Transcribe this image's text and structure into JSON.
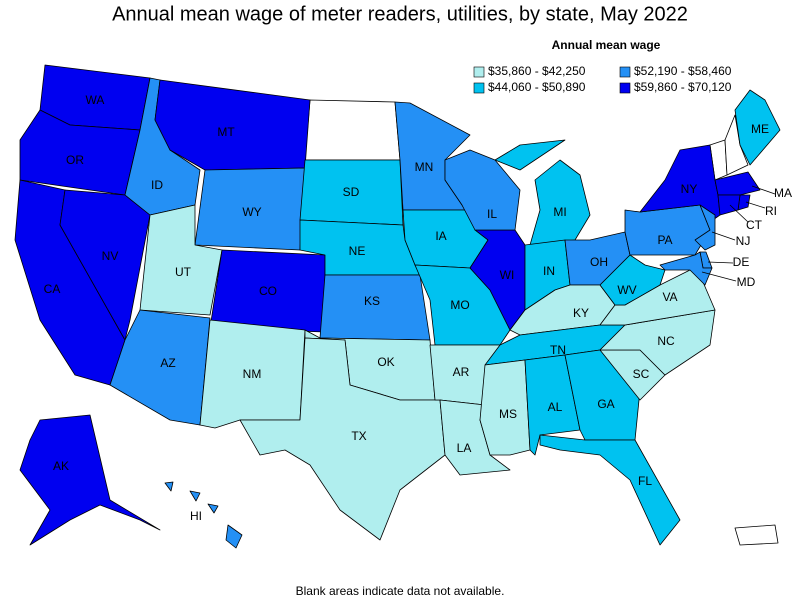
{
  "title": "Annual mean wage of meter readers, utilities, by state, May 2022",
  "legend": {
    "title": "Annual mean wage",
    "bins": [
      {
        "label": "$35,860 - $42,250",
        "color": "#b0eeee"
      },
      {
        "label": "$44,060 - $50,890",
        "color": "#00c2f0"
      },
      {
        "label": "$52,190 - $58,460",
        "color": "#2490f5"
      },
      {
        "label": "$59,860 - $70,120",
        "color": "#0000f0"
      }
    ]
  },
  "states": [
    {
      "label": "WA",
      "bin": 3
    },
    {
      "label": "OR",
      "bin": 3
    },
    {
      "label": "CA",
      "bin": 3
    },
    {
      "label": "NV",
      "bin": 3
    },
    {
      "label": "ID",
      "bin": 2
    },
    {
      "label": "MT",
      "bin": 3
    },
    {
      "label": "WY",
      "bin": 2
    },
    {
      "label": "UT",
      "bin": 0
    },
    {
      "label": "CO",
      "bin": 3
    },
    {
      "label": "AZ",
      "bin": 2
    },
    {
      "label": "NM",
      "bin": 0
    },
    {
      "label": "SD",
      "bin": 1
    },
    {
      "label": "NE",
      "bin": 1
    },
    {
      "label": "KS",
      "bin": 2
    },
    {
      "label": "OK",
      "bin": 0
    },
    {
      "label": "TX",
      "bin": 0
    },
    {
      "label": "MN",
      "bin": 2
    },
    {
      "label": "IA",
      "bin": 1
    },
    {
      "label": "MO",
      "bin": 1
    },
    {
      "label": "AR",
      "bin": 0
    },
    {
      "label": "LA",
      "bin": 0
    },
    {
      "label": "WI",
      "bin": 3
    },
    {
      "label": "IL",
      "bin": 2
    },
    {
      "label": "MI",
      "bin": 1
    },
    {
      "label": "IN",
      "bin": 1
    },
    {
      "label": "OH",
      "bin": 2
    },
    {
      "label": "KY",
      "bin": 0
    },
    {
      "label": "TN",
      "bin": 1
    },
    {
      "label": "MS",
      "bin": 0
    },
    {
      "label": "AL",
      "bin": 1
    },
    {
      "label": "GA",
      "bin": 1
    },
    {
      "label": "FL",
      "bin": 1
    },
    {
      "label": "SC",
      "bin": 0
    },
    {
      "label": "NC",
      "bin": 0
    },
    {
      "label": "VA",
      "bin": 0
    },
    {
      "label": "WV",
      "bin": 1
    },
    {
      "label": "PA",
      "bin": 2
    },
    {
      "label": "NY",
      "bin": 3
    },
    {
      "label": "ME",
      "bin": 1
    },
    {
      "label": "MA",
      "bin": 3
    },
    {
      "label": "RI",
      "bin": 3
    },
    {
      "label": "CT",
      "bin": 3
    },
    {
      "label": "NJ",
      "bin": 2
    },
    {
      "label": "DE",
      "bin": 2
    },
    {
      "label": "MD",
      "bin": 2
    },
    {
      "label": "AK",
      "bin": 3
    },
    {
      "label": "HI",
      "bin": 2
    }
  ],
  "note": "Blank areas indicate data not available."
}
